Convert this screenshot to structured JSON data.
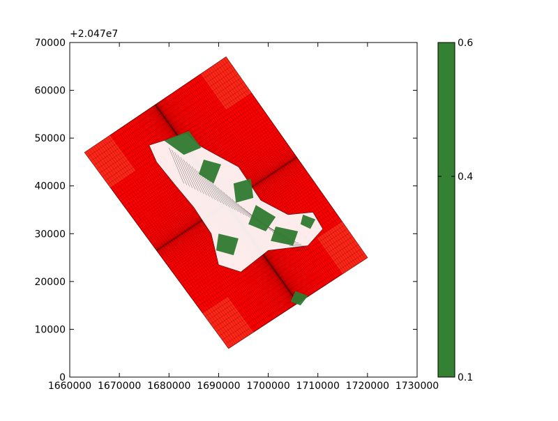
{
  "chart_data": [
    {
      "type": "heatmap",
      "title": "",
      "xlabel": "",
      "ylabel": "",
      "xlim": [
        1660000,
        1730000
      ],
      "ylim": [
        0,
        70000
      ],
      "x_ticks": [
        1660000,
        1670000,
        1680000,
        1690000,
        1700000,
        1710000,
        1720000,
        1730000
      ],
      "y_ticks": [
        0,
        10000,
        20000,
        30000,
        40000,
        50000,
        60000,
        70000
      ],
      "y_offset_label": "+2.047e7",
      "grid": false,
      "mesh": {
        "corners": [
          [
            1663000,
            47000
          ],
          [
            1691500,
            67000
          ],
          [
            1720000,
            25000
          ],
          [
            1692000,
            6000
          ]
        ],
        "background_color": "#ff0000",
        "corner_blocks_color": "#ff2a1a",
        "edge_color": "#000000"
      },
      "overlay_color": "#2f7a30",
      "mesh_core_color": "#ffffff"
    },
    {
      "type": "colorbar",
      "range": [
        0.1,
        0.6
      ],
      "ticks": [
        0.1,
        0.4,
        0.6
      ],
      "color": "#348134"
    }
  ]
}
